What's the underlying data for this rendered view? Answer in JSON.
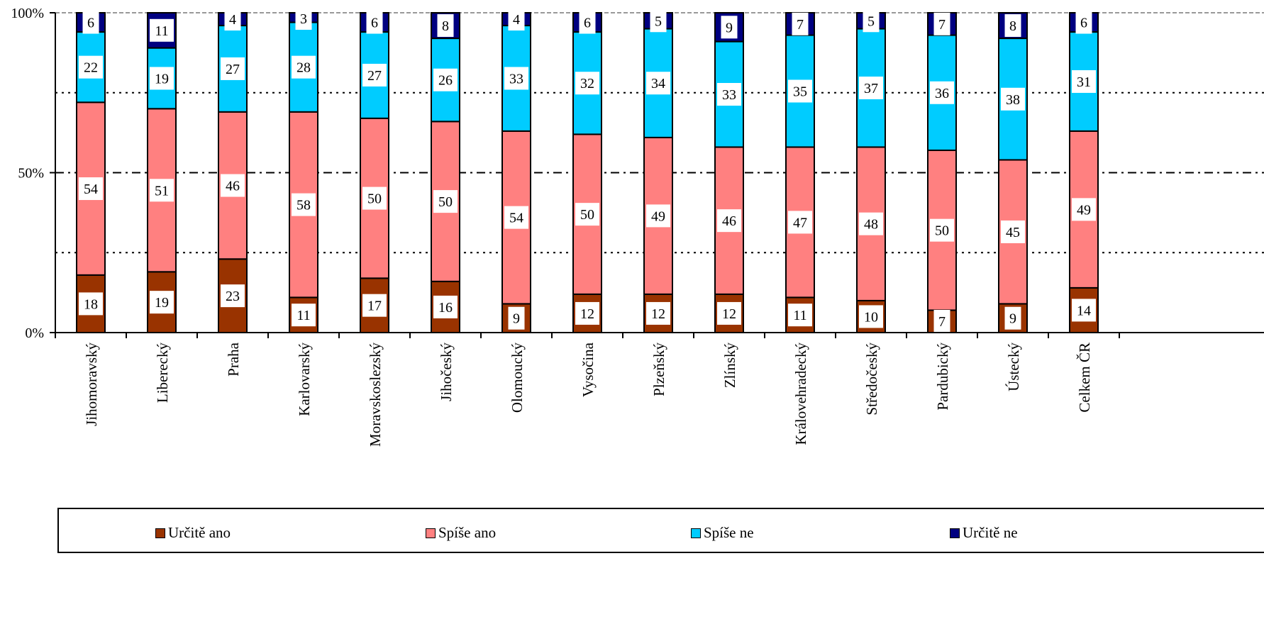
{
  "chart_data": {
    "type": "bar",
    "stacked": true,
    "categories": [
      "Jihomoravský",
      "Liberecký",
      "Praha",
      "Karlovarský",
      "Moravskoslezský",
      "Jihočeský",
      "Olomoucký",
      "Vysočina",
      "Plzeňský",
      "Zlínský",
      "Královehradecký",
      "Středočeský",
      "Pardubický",
      "Ústecký",
      "Celkem ČR"
    ],
    "series": [
      {
        "name": "Určitě ano",
        "color": "#993300",
        "values": [
          18,
          19,
          23,
          11,
          17,
          16,
          9,
          12,
          12,
          12,
          11,
          10,
          7,
          9,
          14
        ]
      },
      {
        "name": "Spíše ano",
        "color": "#ff8080",
        "values": [
          54,
          51,
          46,
          58,
          50,
          50,
          54,
          50,
          49,
          46,
          47,
          48,
          50,
          45,
          49
        ]
      },
      {
        "name": "Spíše ne",
        "color": "#00ccff",
        "values": [
          22,
          19,
          27,
          28,
          27,
          26,
          33,
          32,
          34,
          33,
          35,
          37,
          36,
          38,
          31
        ]
      },
      {
        "name": "Určitě ne",
        "color": "#000080",
        "values": [
          6,
          11,
          4,
          3,
          6,
          8,
          4,
          6,
          5,
          9,
          7,
          5,
          7,
          8,
          6
        ]
      }
    ],
    "yticks": [
      "0%",
      "50%",
      "100%"
    ],
    "ylim": [
      0,
      100
    ],
    "gridlines": [
      25,
      50,
      75,
      100
    ],
    "legend_position": "bottom",
    "data_labels": true
  }
}
